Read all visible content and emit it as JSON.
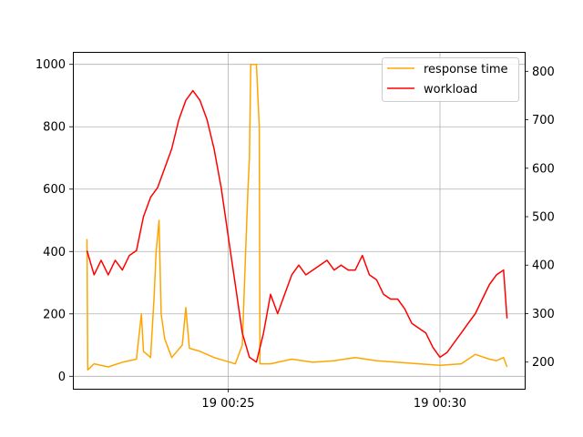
{
  "chart_data": {
    "type": "line",
    "x_axis": {
      "type": "time",
      "range": [
        "00:21:20",
        "00:32:00"
      ],
      "ticks": [
        {
          "time": "00:25:00",
          "label": "19 00:25"
        },
        {
          "time": "00:30:00",
          "label": "19 00:30"
        }
      ]
    },
    "y_left": {
      "range": [
        -40,
        1040
      ],
      "ticks": [
        0,
        200,
        400,
        600,
        800,
        1000
      ]
    },
    "y_right": {
      "range": [
        145,
        840
      ],
      "ticks": [
        200,
        300,
        400,
        500,
        600,
        700,
        800
      ]
    },
    "grid": true,
    "legend": {
      "placement": "top-right",
      "entries": [
        "response time",
        "workload"
      ]
    },
    "series": [
      {
        "name": "response time",
        "color": "#ffa500",
        "axis": "left",
        "points": [
          [
            "00:21:40",
            440
          ],
          [
            "00:21:41",
            20
          ],
          [
            "00:21:50",
            40
          ],
          [
            "00:22:10",
            30
          ],
          [
            "00:22:30",
            45
          ],
          [
            "00:22:50",
            55
          ],
          [
            "00:22:57",
            200
          ],
          [
            "00:23:00",
            80
          ],
          [
            "00:23:10",
            60
          ],
          [
            "00:23:15",
            250
          ],
          [
            "00:23:18",
            400
          ],
          [
            "00:23:22",
            500
          ],
          [
            "00:23:25",
            200
          ],
          [
            "00:23:30",
            120
          ],
          [
            "00:23:40",
            60
          ],
          [
            "00:23:55",
            100
          ],
          [
            "00:24:00",
            220
          ],
          [
            "00:24:05",
            90
          ],
          [
            "00:24:20",
            80
          ],
          [
            "00:24:40",
            60
          ],
          [
            "00:24:55",
            50
          ],
          [
            "00:25:10",
            40
          ],
          [
            "00:25:20",
            100
          ],
          [
            "00:25:25",
            420
          ],
          [
            "00:25:28",
            600
          ],
          [
            "00:25:30",
            700
          ],
          [
            "00:25:32",
            1000
          ],
          [
            "00:25:36",
            1000
          ],
          [
            "00:25:40",
            1000
          ],
          [
            "00:25:44",
            800
          ],
          [
            "00:25:45",
            40
          ],
          [
            "00:26:00",
            40
          ],
          [
            "00:26:30",
            55
          ],
          [
            "00:27:00",
            45
          ],
          [
            "00:27:30",
            50
          ],
          [
            "00:28:00",
            60
          ],
          [
            "00:28:30",
            50
          ],
          [
            "00:29:00",
            45
          ],
          [
            "00:29:30",
            40
          ],
          [
            "00:30:00",
            35
          ],
          [
            "00:30:30",
            40
          ],
          [
            "00:30:50",
            70
          ],
          [
            "00:31:10",
            55
          ],
          [
            "00:31:20",
            50
          ],
          [
            "00:31:30",
            60
          ],
          [
            "00:31:35",
            30
          ]
        ]
      },
      {
        "name": "workload",
        "color": "#ff0000",
        "axis": "right",
        "points": [
          [
            "00:21:40",
            430
          ],
          [
            "00:21:50",
            380
          ],
          [
            "00:22:00",
            410
          ],
          [
            "00:22:10",
            380
          ],
          [
            "00:22:20",
            410
          ],
          [
            "00:22:30",
            390
          ],
          [
            "00:22:40",
            420
          ],
          [
            "00:22:50",
            430
          ],
          [
            "00:23:00",
            500
          ],
          [
            "00:23:10",
            540
          ],
          [
            "00:23:20",
            560
          ],
          [
            "00:23:30",
            600
          ],
          [
            "00:23:40",
            640
          ],
          [
            "00:23:50",
            700
          ],
          [
            "00:24:00",
            740
          ],
          [
            "00:24:10",
            760
          ],
          [
            "00:24:20",
            740
          ],
          [
            "00:24:30",
            700
          ],
          [
            "00:24:40",
            640
          ],
          [
            "00:24:50",
            560
          ],
          [
            "00:25:00",
            460
          ],
          [
            "00:25:10",
            360
          ],
          [
            "00:25:20",
            260
          ],
          [
            "00:25:30",
            210
          ],
          [
            "00:25:40",
            200
          ],
          [
            "00:25:50",
            260
          ],
          [
            "00:26:00",
            340
          ],
          [
            "00:26:10",
            300
          ],
          [
            "00:26:20",
            340
          ],
          [
            "00:26:30",
            380
          ],
          [
            "00:26:40",
            400
          ],
          [
            "00:26:50",
            380
          ],
          [
            "00:27:00",
            390
          ],
          [
            "00:27:10",
            400
          ],
          [
            "00:27:20",
            410
          ],
          [
            "00:27:30",
            390
          ],
          [
            "00:27:40",
            400
          ],
          [
            "00:27:50",
            390
          ],
          [
            "00:28:00",
            390
          ],
          [
            "00:28:10",
            420
          ],
          [
            "00:28:20",
            380
          ],
          [
            "00:28:30",
            370
          ],
          [
            "00:28:40",
            340
          ],
          [
            "00:28:50",
            330
          ],
          [
            "00:29:00",
            330
          ],
          [
            "00:29:10",
            310
          ],
          [
            "00:29:20",
            280
          ],
          [
            "00:29:30",
            270
          ],
          [
            "00:29:40",
            260
          ],
          [
            "00:29:50",
            230
          ],
          [
            "00:30:00",
            210
          ],
          [
            "00:30:10",
            220
          ],
          [
            "00:30:20",
            240
          ],
          [
            "00:30:30",
            260
          ],
          [
            "00:30:40",
            280
          ],
          [
            "00:30:50",
            300
          ],
          [
            "00:31:00",
            330
          ],
          [
            "00:31:10",
            360
          ],
          [
            "00:31:20",
            380
          ],
          [
            "00:31:30",
            390
          ],
          [
            "00:31:35",
            290
          ]
        ]
      }
    ]
  }
}
